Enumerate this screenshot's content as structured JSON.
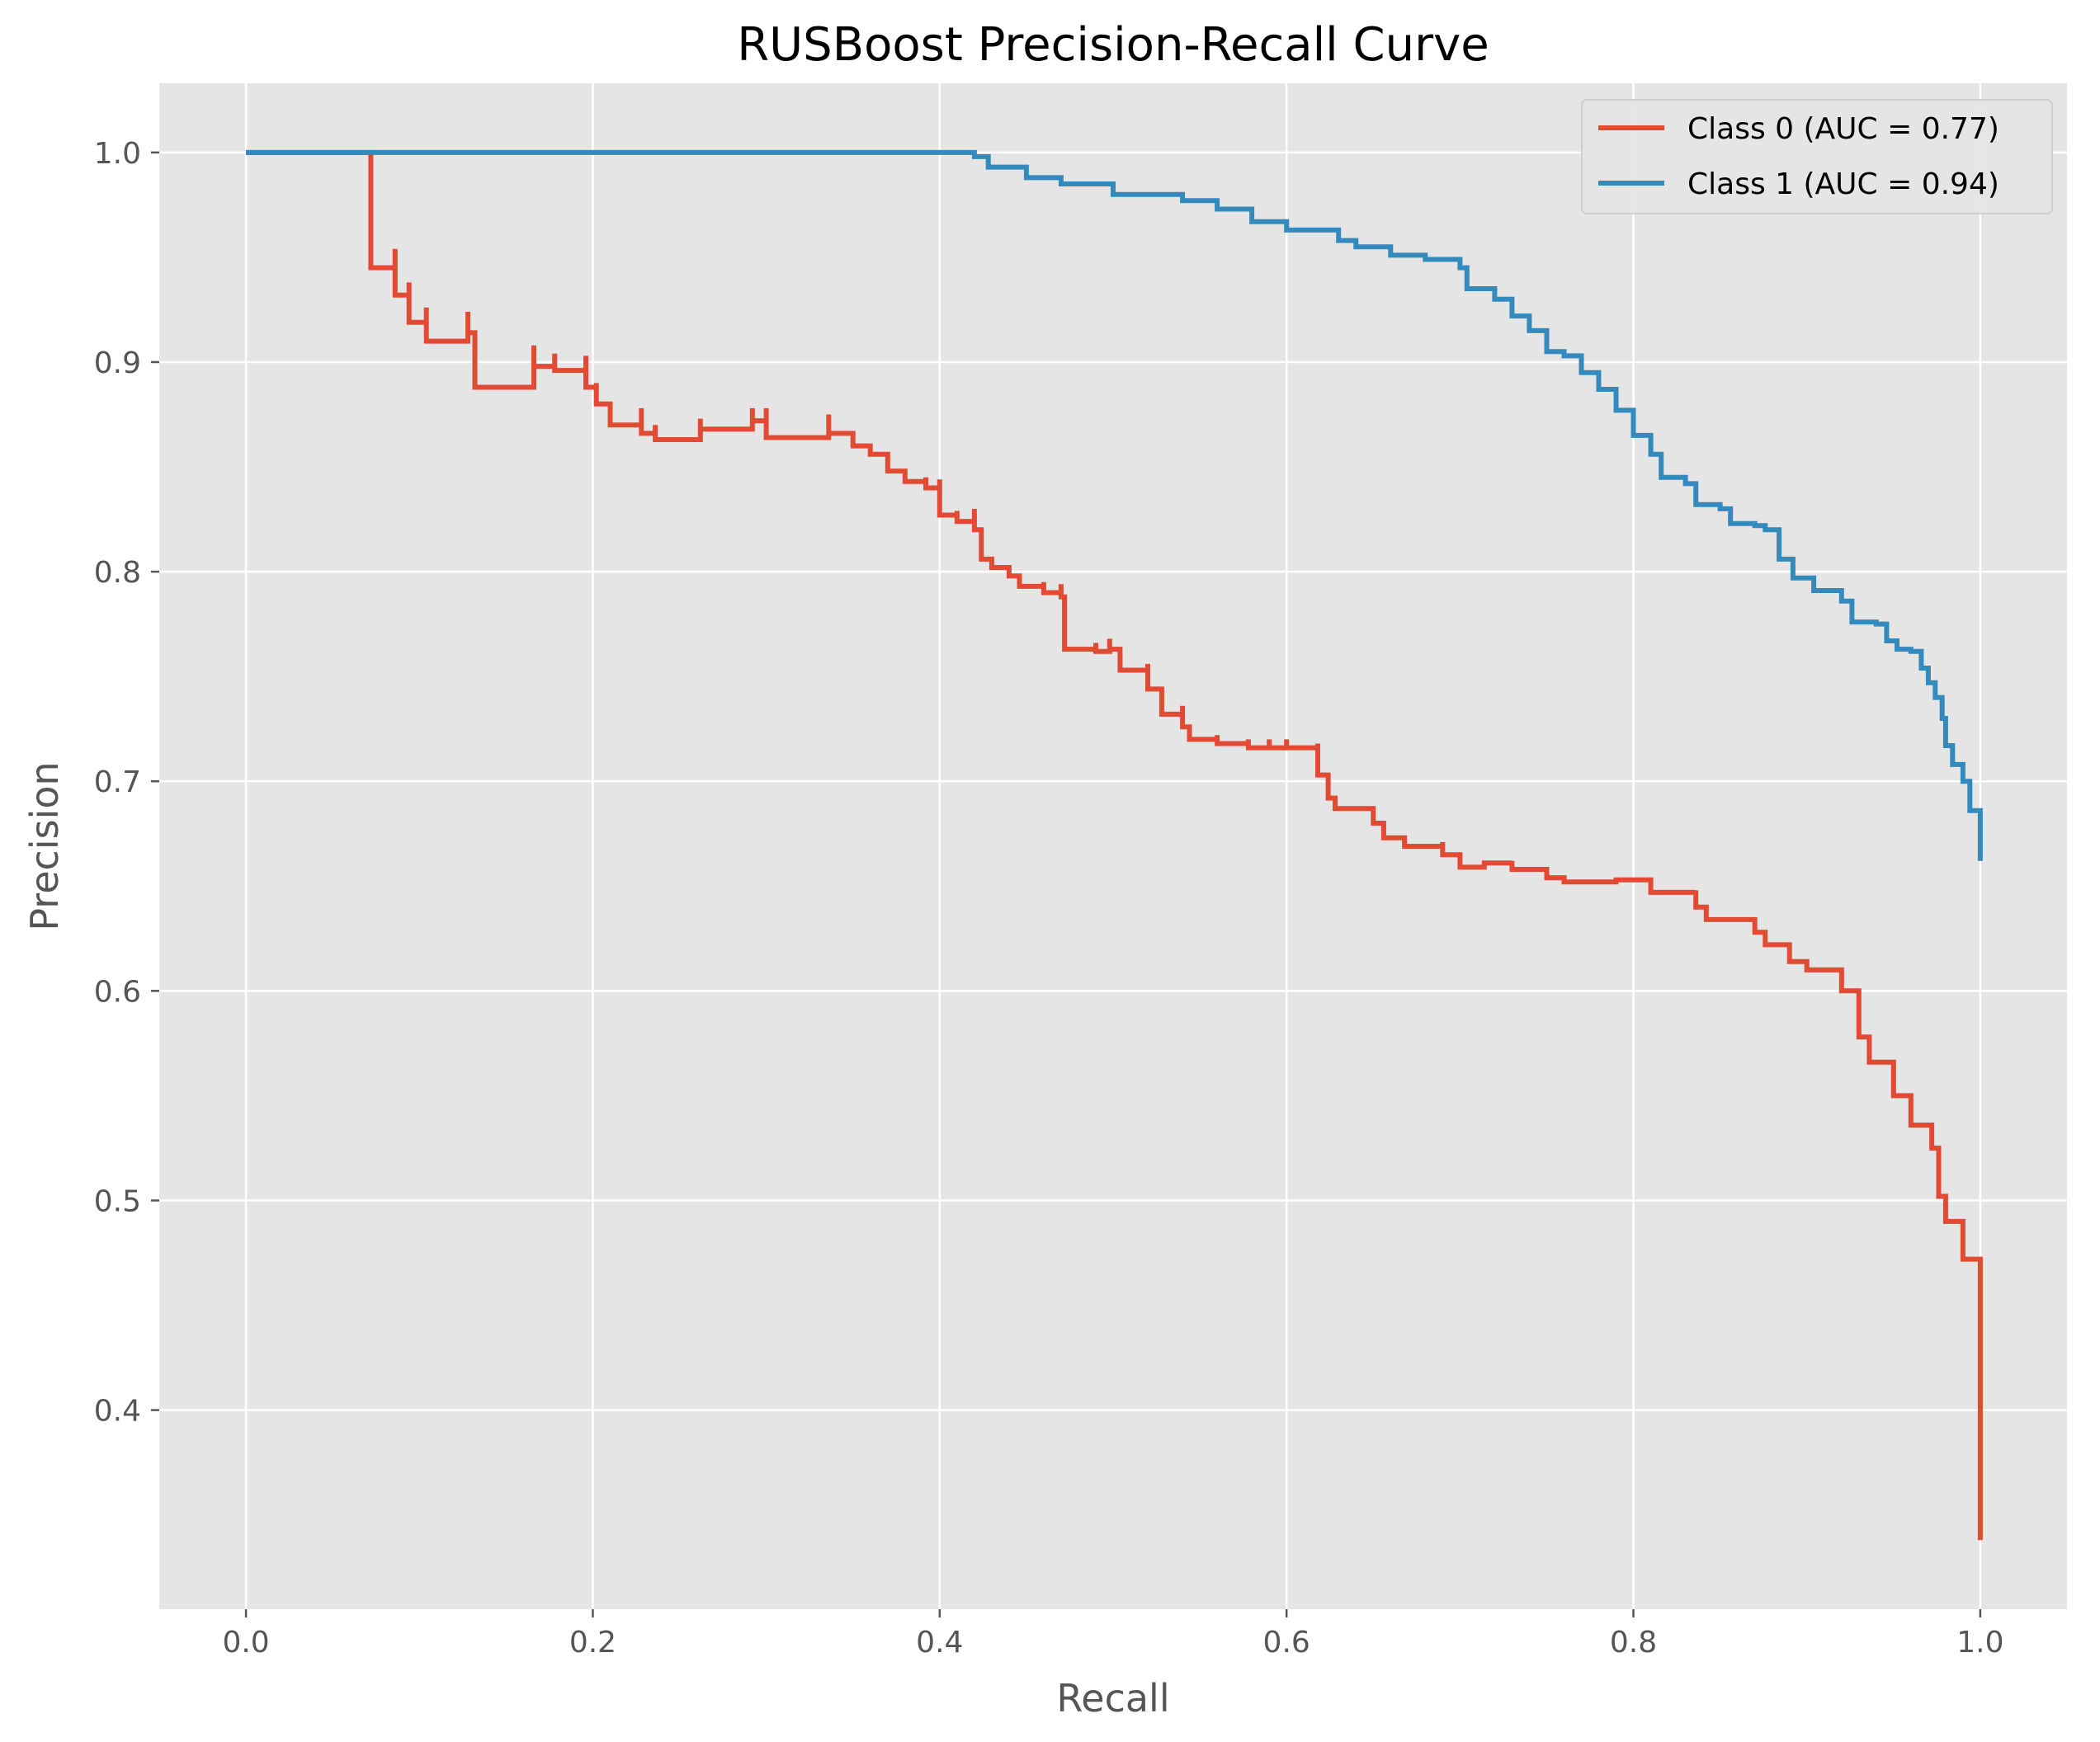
{
  "chart_data": {
    "type": "line",
    "title": "RUSBoost Precision-Recall Curve",
    "xlabel": "Recall",
    "ylabel": "Precision",
    "xlim": [
      -0.05,
      1.05
    ],
    "ylim": [
      0.305,
      1.033
    ],
    "xticks": [
      "0.0",
      "0.2",
      "0.4",
      "0.6",
      "0.8",
      "1.0"
    ],
    "yticks": [
      "0.4",
      "0.5",
      "0.6",
      "0.7",
      "0.8",
      "0.9",
      "1.0"
    ],
    "grid": true,
    "legend_position": "top-right",
    "series": [
      {
        "name": "Class 0 (AUC = 0.77)",
        "color": "#E24A33",
        "step": "post",
        "points": [
          [
            0.0,
            1.0
          ],
          [
            0.072,
            1.0
          ],
          [
            0.072,
            0.945
          ],
          [
            0.086,
            0.954
          ],
          [
            0.086,
            0.932
          ],
          [
            0.094,
            0.938
          ],
          [
            0.094,
            0.919
          ],
          [
            0.104,
            0.926
          ],
          [
            0.104,
            0.91
          ],
          [
            0.128,
            0.924
          ],
          [
            0.128,
            0.914
          ],
          [
            0.132,
            0.914
          ],
          [
            0.132,
            0.888
          ],
          [
            0.166,
            0.908
          ],
          [
            0.166,
            0.898
          ],
          [
            0.178,
            0.904
          ],
          [
            0.178,
            0.896
          ],
          [
            0.196,
            0.903
          ],
          [
            0.196,
            0.888
          ],
          [
            0.202,
            0.89
          ],
          [
            0.202,
            0.88
          ],
          [
            0.21,
            0.88
          ],
          [
            0.21,
            0.87
          ],
          [
            0.228,
            0.878
          ],
          [
            0.228,
            0.866
          ],
          [
            0.236,
            0.87
          ],
          [
            0.236,
            0.863
          ],
          [
            0.262,
            0.873
          ],
          [
            0.262,
            0.868
          ],
          [
            0.292,
            0.878
          ],
          [
            0.292,
            0.872
          ],
          [
            0.3,
            0.878
          ],
          [
            0.3,
            0.864
          ],
          [
            0.336,
            0.875
          ],
          [
            0.336,
            0.866
          ],
          [
            0.35,
            0.866
          ],
          [
            0.35,
            0.86
          ],
          [
            0.36,
            0.86
          ],
          [
            0.36,
            0.856
          ],
          [
            0.37,
            0.856
          ],
          [
            0.37,
            0.848
          ],
          [
            0.38,
            0.848
          ],
          [
            0.38,
            0.843
          ],
          [
            0.392,
            0.845
          ],
          [
            0.392,
            0.84
          ],
          [
            0.4,
            0.844
          ],
          [
            0.4,
            0.827
          ],
          [
            0.41,
            0.829
          ],
          [
            0.41,
            0.824
          ],
          [
            0.42,
            0.83
          ],
          [
            0.42,
            0.82
          ],
          [
            0.424,
            0.82
          ],
          [
            0.424,
            0.806
          ],
          [
            0.43,
            0.806
          ],
          [
            0.43,
            0.802
          ],
          [
            0.44,
            0.802
          ],
          [
            0.44,
            0.798
          ],
          [
            0.446,
            0.798
          ],
          [
            0.446,
            0.793
          ],
          [
            0.46,
            0.795
          ],
          [
            0.46,
            0.79
          ],
          [
            0.47,
            0.794
          ],
          [
            0.47,
            0.788
          ],
          [
            0.472,
            0.788
          ],
          [
            0.472,
            0.763
          ],
          [
            0.49,
            0.766
          ],
          [
            0.49,
            0.762
          ],
          [
            0.498,
            0.768
          ],
          [
            0.498,
            0.763
          ],
          [
            0.504,
            0.763
          ],
          [
            0.504,
            0.753
          ],
          [
            0.52,
            0.756
          ],
          [
            0.52,
            0.744
          ],
          [
            0.528,
            0.744
          ],
          [
            0.528,
            0.732
          ],
          [
            0.54,
            0.736
          ],
          [
            0.54,
            0.726
          ],
          [
            0.544,
            0.72
          ],
          [
            0.56,
            0.722
          ],
          [
            0.56,
            0.718
          ],
          [
            0.578,
            0.72
          ],
          [
            0.578,
            0.716
          ],
          [
            0.59,
            0.72
          ],
          [
            0.59,
            0.716
          ],
          [
            0.6,
            0.72
          ],
          [
            0.6,
            0.716
          ],
          [
            0.618,
            0.718
          ],
          [
            0.618,
            0.703
          ],
          [
            0.624,
            0.703
          ],
          [
            0.624,
            0.692
          ],
          [
            0.628,
            0.692
          ],
          [
            0.628,
            0.687
          ],
          [
            0.65,
            0.687
          ],
          [
            0.65,
            0.68
          ],
          [
            0.656,
            0.68
          ],
          [
            0.656,
            0.673
          ],
          [
            0.668,
            0.673
          ],
          [
            0.668,
            0.669
          ],
          [
            0.69,
            0.671
          ],
          [
            0.69,
            0.665
          ],
          [
            0.7,
            0.665
          ],
          [
            0.7,
            0.659
          ],
          [
            0.714,
            0.659
          ],
          [
            0.714,
            0.661
          ],
          [
            0.72,
            0.661
          ],
          [
            0.73,
            0.662
          ],
          [
            0.73,
            0.658
          ],
          [
            0.75,
            0.658
          ],
          [
            0.75,
            0.654
          ],
          [
            0.76,
            0.654
          ],
          [
            0.76,
            0.652
          ],
          [
            0.79,
            0.652
          ],
          [
            0.79,
            0.653
          ],
          [
            0.81,
            0.653
          ],
          [
            0.81,
            0.647
          ],
          [
            0.836,
            0.648
          ],
          [
            0.836,
            0.64
          ],
          [
            0.842,
            0.64
          ],
          [
            0.842,
            0.634
          ],
          [
            0.87,
            0.634
          ],
          [
            0.87,
            0.628
          ],
          [
            0.876,
            0.628
          ],
          [
            0.876,
            0.622
          ],
          [
            0.89,
            0.622
          ],
          [
            0.89,
            0.614
          ],
          [
            0.9,
            0.614
          ],
          [
            0.9,
            0.61
          ],
          [
            0.92,
            0.61
          ],
          [
            0.92,
            0.6
          ],
          [
            0.93,
            0.6
          ],
          [
            0.93,
            0.578
          ],
          [
            0.936,
            0.578
          ],
          [
            0.936,
            0.566
          ],
          [
            0.95,
            0.566
          ],
          [
            0.95,
            0.55
          ],
          [
            0.96,
            0.55
          ],
          [
            0.96,
            0.536
          ],
          [
            0.972,
            0.536
          ],
          [
            0.972,
            0.525
          ],
          [
            0.976,
            0.525
          ],
          [
            0.976,
            0.502
          ],
          [
            0.98,
            0.502
          ],
          [
            0.98,
            0.49
          ],
          [
            0.99,
            0.49
          ],
          [
            0.99,
            0.472
          ],
          [
            1.0,
            0.47
          ],
          [
            1.0,
            0.338
          ]
        ]
      },
      {
        "name": "Class 1 (AUC = 0.94)",
        "color": "#348ABD",
        "step": "post",
        "points": [
          [
            0.0,
            1.0
          ],
          [
            0.42,
            1.0
          ],
          [
            0.42,
            0.998
          ],
          [
            0.428,
            0.998
          ],
          [
            0.428,
            0.993
          ],
          [
            0.45,
            0.993
          ],
          [
            0.45,
            0.988
          ],
          [
            0.47,
            0.988
          ],
          [
            0.47,
            0.985
          ],
          [
            0.5,
            0.985
          ],
          [
            0.5,
            0.98
          ],
          [
            0.54,
            0.98
          ],
          [
            0.54,
            0.977
          ],
          [
            0.56,
            0.977
          ],
          [
            0.56,
            0.973
          ],
          [
            0.58,
            0.973
          ],
          [
            0.58,
            0.967
          ],
          [
            0.6,
            0.967
          ],
          [
            0.6,
            0.963
          ],
          [
            0.63,
            0.963
          ],
          [
            0.63,
            0.958
          ],
          [
            0.64,
            0.958
          ],
          [
            0.64,
            0.955
          ],
          [
            0.66,
            0.955
          ],
          [
            0.66,
            0.951
          ],
          [
            0.68,
            0.949
          ],
          [
            0.7,
            0.945
          ],
          [
            0.704,
            0.935
          ],
          [
            0.72,
            0.93
          ],
          [
            0.73,
            0.922
          ],
          [
            0.74,
            0.915
          ],
          [
            0.75,
            0.905
          ],
          [
            0.76,
            0.903
          ],
          [
            0.77,
            0.902
          ],
          [
            0.77,
            0.895
          ],
          [
            0.78,
            0.887
          ],
          [
            0.79,
            0.877
          ],
          [
            0.8,
            0.865
          ],
          [
            0.81,
            0.856
          ],
          [
            0.816,
            0.845
          ],
          [
            0.83,
            0.842
          ],
          [
            0.836,
            0.832
          ],
          [
            0.85,
            0.83
          ],
          [
            0.856,
            0.823
          ],
          [
            0.87,
            0.822
          ],
          [
            0.876,
            0.82
          ],
          [
            0.884,
            0.806
          ],
          [
            0.892,
            0.797
          ],
          [
            0.9,
            0.797
          ],
          [
            0.904,
            0.791
          ],
          [
            0.91,
            0.791
          ],
          [
            0.92,
            0.786
          ],
          [
            0.926,
            0.776
          ],
          [
            0.94,
            0.775
          ],
          [
            0.946,
            0.767
          ],
          [
            0.952,
            0.763
          ],
          [
            0.96,
            0.762
          ],
          [
            0.966,
            0.754
          ],
          [
            0.97,
            0.747
          ],
          [
            0.974,
            0.74
          ],
          [
            0.978,
            0.73
          ],
          [
            0.98,
            0.717
          ],
          [
            0.984,
            0.708
          ],
          [
            0.99,
            0.7
          ],
          [
            0.994,
            0.686
          ],
          [
            1.0,
            0.678
          ],
          [
            1.0,
            0.662
          ]
        ]
      }
    ]
  }
}
